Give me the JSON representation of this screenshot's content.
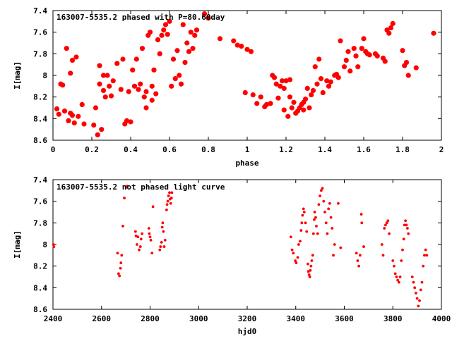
{
  "chart_data": [
    {
      "type": "scatter",
      "title": "163007-5535.2 phased with P=80.60day",
      "xlabel": "phase",
      "ylabel": "I[mag]",
      "xlim": [
        0,
        2
      ],
      "ylim": [
        8.6,
        7.4
      ],
      "y_inverted": true,
      "grid": false,
      "marker": "filled-circle-large",
      "color": "#ff0000",
      "x_ticks": [
        "0",
        "0.2",
        "0.4",
        "0.6",
        "0.8",
        "1",
        "1.2",
        "1.4",
        "1.6",
        "1.8",
        "2"
      ],
      "y_ticks": [
        "7.4",
        "7.6",
        "7.8",
        "8",
        "8.2",
        "8.4",
        "8.6"
      ],
      "points": [
        [
          0.02,
          8.31
        ],
        [
          0.03,
          8.36
        ],
        [
          0.04,
          8.08
        ],
        [
          0.05,
          8.09
        ],
        [
          0.06,
          8.33
        ],
        [
          0.07,
          7.75
        ],
        [
          0.08,
          8.42
        ],
        [
          0.09,
          8.35
        ],
        [
          0.09,
          7.98
        ],
        [
          0.1,
          7.86
        ],
        [
          0.1,
          8.37
        ],
        [
          0.11,
          8.44
        ],
        [
          0.12,
          7.83
        ],
        [
          0.13,
          8.38
        ],
        [
          0.15,
          8.27
        ],
        [
          0.16,
          8.45
        ],
        [
          0.21,
          8.46
        ],
        [
          0.22,
          8.3
        ],
        [
          0.23,
          8.55
        ],
        [
          0.24,
          8.08
        ],
        [
          0.24,
          7.91
        ],
        [
          0.25,
          8.5
        ],
        [
          0.26,
          8.0
        ],
        [
          0.26,
          8.14
        ],
        [
          0.27,
          8.2
        ],
        [
          0.28,
          8.0
        ],
        [
          0.29,
          8.1
        ],
        [
          0.3,
          8.19
        ],
        [
          0.31,
          8.05
        ],
        [
          0.33,
          7.89
        ],
        [
          0.35,
          8.13
        ],
        [
          0.36,
          7.85
        ],
        [
          0.37,
          8.45
        ],
        [
          0.38,
          8.42
        ],
        [
          0.39,
          8.15
        ],
        [
          0.4,
          8.43
        ],
        [
          0.41,
          7.95
        ],
        [
          0.42,
          8.1
        ],
        [
          0.43,
          7.85
        ],
        [
          0.44,
          8.13
        ],
        [
          0.45,
          8.08
        ],
        [
          0.46,
          7.75
        ],
        [
          0.47,
          8.2
        ],
        [
          0.48,
          8.15
        ],
        [
          0.48,
          8.3
        ],
        [
          0.49,
          7.63
        ],
        [
          0.5,
          7.6
        ],
        [
          0.51,
          8.23
        ],
        [
          0.51,
          8.1
        ],
        [
          0.52,
          7.95
        ],
        [
          0.53,
          8.17
        ],
        [
          0.54,
          7.67
        ],
        [
          0.55,
          7.8
        ],
        [
          0.56,
          7.63
        ],
        [
          0.57,
          7.58
        ],
        [
          0.58,
          7.53
        ],
        [
          0.59,
          7.62
        ],
        [
          0.6,
          7.5
        ],
        [
          0.61,
          8.1
        ],
        [
          0.62,
          7.85
        ],
        [
          0.63,
          8.03
        ],
        [
          0.64,
          7.77
        ],
        [
          0.65,
          8.0
        ],
        [
          0.66,
          8.08
        ],
        [
          0.67,
          7.53
        ],
        [
          0.68,
          7.88
        ],
        [
          0.69,
          7.7
        ],
        [
          0.7,
          7.78
        ],
        [
          0.71,
          7.6
        ],
        [
          0.72,
          7.75
        ],
        [
          0.73,
          7.63
        ],
        [
          0.74,
          7.58
        ],
        [
          0.78,
          7.43
        ],
        [
          0.8,
          7.47
        ],
        [
          0.86,
          7.66
        ],
        [
          0.93,
          7.68
        ],
        [
          0.95,
          7.72
        ],
        [
          0.97,
          7.73
        ],
        [
          0.99,
          8.16
        ],
        [
          1.0,
          7.76
        ],
        [
          1.02,
          7.78
        ],
        [
          1.03,
          8.18
        ],
        [
          1.05,
          8.26
        ],
        [
          1.07,
          8.2
        ],
        [
          1.09,
          8.29
        ],
        [
          1.1,
          8.27
        ],
        [
          1.12,
          8.26
        ],
        [
          1.13,
          8.0
        ],
        [
          1.14,
          8.02
        ],
        [
          1.15,
          8.08
        ],
        [
          1.16,
          8.21
        ],
        [
          1.17,
          8.1
        ],
        [
          1.18,
          8.05
        ],
        [
          1.19,
          8.32
        ],
        [
          1.19,
          8.12
        ],
        [
          1.2,
          8.05
        ],
        [
          1.21,
          8.38
        ],
        [
          1.22,
          8.04
        ],
        [
          1.22,
          8.2
        ],
        [
          1.23,
          8.3
        ],
        [
          1.24,
          8.25
        ],
        [
          1.25,
          8.35
        ],
        [
          1.26,
          8.33
        ],
        [
          1.27,
          8.3
        ],
        [
          1.28,
          8.27
        ],
        [
          1.29,
          8.25
        ],
        [
          1.29,
          8.32
        ],
        [
          1.3,
          8.22
        ],
        [
          1.31,
          8.12
        ],
        [
          1.32,
          8.3
        ],
        [
          1.33,
          8.18
        ],
        [
          1.34,
          8.14
        ],
        [
          1.35,
          7.92
        ],
        [
          1.36,
          8.08
        ],
        [
          1.37,
          7.85
        ],
        [
          1.38,
          8.03
        ],
        [
          1.39,
          8.16
        ],
        [
          1.41,
          8.05
        ],
        [
          1.42,
          8.1
        ],
        [
          1.43,
          8.06
        ],
        [
          1.45,
          8.0
        ],
        [
          1.46,
          7.99
        ],
        [
          1.47,
          8.02
        ],
        [
          1.48,
          7.68
        ],
        [
          1.5,
          7.92
        ],
        [
          1.51,
          7.86
        ],
        [
          1.52,
          7.78
        ],
        [
          1.53,
          7.96
        ],
        [
          1.55,
          7.75
        ],
        [
          1.56,
          7.82
        ],
        [
          1.57,
          7.92
        ],
        [
          1.59,
          7.75
        ],
        [
          1.6,
          7.66
        ],
        [
          1.61,
          7.78
        ],
        [
          1.62,
          7.8
        ],
        [
          1.63,
          7.81
        ],
        [
          1.66,
          7.8
        ],
        [
          1.67,
          7.82
        ],
        [
          1.7,
          7.84
        ],
        [
          1.71,
          7.87
        ],
        [
          1.72,
          7.58
        ],
        [
          1.73,
          7.61
        ],
        [
          1.74,
          7.56
        ],
        [
          1.75,
          7.52
        ],
        [
          1.8,
          7.77
        ],
        [
          1.81,
          7.91
        ],
        [
          1.82,
          7.88
        ],
        [
          1.83,
          8.0
        ],
        [
          1.87,
          7.93
        ],
        [
          1.96,
          7.61
        ]
      ]
    },
    {
      "type": "scatter",
      "title": "163007-5535.2 not phased light curve",
      "xlabel": "hjd0",
      "ylabel": "I[mag]",
      "xlim": [
        2400,
        4000
      ],
      "ylim": [
        8.6,
        7.4
      ],
      "y_inverted": true,
      "grid": false,
      "marker": "filled-circle-small",
      "color": "#ff0000",
      "x_ticks": [
        "2400",
        "2600",
        "2800",
        "3000",
        "3200",
        "3400",
        "3600",
        "3800",
        "4000"
      ],
      "y_ticks": [
        "7.4",
        "7.6",
        "7.8",
        "8",
        "8.2",
        "8.4",
        "8.6"
      ],
      "points": [
        [
          2402,
          8.0
        ],
        [
          2404,
          8.02
        ],
        [
          2666,
          8.08
        ],
        [
          2670,
          8.27
        ],
        [
          2674,
          8.29
        ],
        [
          2678,
          8.22
        ],
        [
          2680,
          8.17
        ],
        [
          2683,
          8.1
        ],
        [
          2688,
          7.83
        ],
        [
          2694,
          7.57
        ],
        [
          2703,
          7.47
        ],
        [
          2706,
          7.46
        ],
        [
          2740,
          7.88
        ],
        [
          2742,
          7.92
        ],
        [
          2746,
          8.0
        ],
        [
          2750,
          7.93
        ],
        [
          2755,
          8.05
        ],
        [
          2760,
          8.02
        ],
        [
          2763,
          7.95
        ],
        [
          2767,
          7.9
        ],
        [
          2795,
          7.85
        ],
        [
          2797,
          7.9
        ],
        [
          2800,
          7.93
        ],
        [
          2803,
          7.96
        ],
        [
          2808,
          8.08
        ],
        [
          2812,
          7.65
        ],
        [
          2840,
          8.05
        ],
        [
          2843,
          8.02
        ],
        [
          2847,
          7.98
        ],
        [
          2850,
          7.84
        ],
        [
          2852,
          7.8
        ],
        [
          2855,
          7.88
        ],
        [
          2858,
          8.02
        ],
        [
          2862,
          7.96
        ],
        [
          2868,
          7.68
        ],
        [
          2870,
          7.63
        ],
        [
          2873,
          7.6
        ],
        [
          2876,
          7.55
        ],
        [
          2880,
          7.52
        ],
        [
          2882,
          7.58
        ],
        [
          2885,
          7.62
        ],
        [
          2888,
          7.57
        ],
        [
          2890,
          7.52
        ],
        [
          3380,
          7.93
        ],
        [
          3385,
          8.05
        ],
        [
          3390,
          8.08
        ],
        [
          3398,
          8.15
        ],
        [
          3402,
          8.17
        ],
        [
          3408,
          8.12
        ],
        [
          3412,
          8.0
        ],
        [
          3418,
          7.97
        ],
        [
          3422,
          7.87
        ],
        [
          3425,
          7.8
        ],
        [
          3428,
          7.73
        ],
        [
          3432,
          7.67
        ],
        [
          3435,
          7.7
        ],
        [
          3440,
          7.8
        ],
        [
          3445,
          7.88
        ],
        [
          3450,
          8.18
        ],
        [
          3452,
          8.25
        ],
        [
          3455,
          8.28
        ],
        [
          3458,
          8.3
        ],
        [
          3460,
          8.24
        ],
        [
          3463,
          8.2
        ],
        [
          3466,
          8.15
        ],
        [
          3470,
          8.1
        ],
        [
          3473,
          7.9
        ],
        [
          3476,
          7.77
        ],
        [
          3478,
          7.7
        ],
        [
          3482,
          7.75
        ],
        [
          3485,
          7.83
        ],
        [
          3490,
          7.9
        ],
        [
          3495,
          7.63
        ],
        [
          3500,
          7.55
        ],
        [
          3505,
          7.5
        ],
        [
          3510,
          7.48
        ],
        [
          3515,
          7.6
        ],
        [
          3520,
          7.7
        ],
        [
          3525,
          7.8
        ],
        [
          3530,
          7.9
        ],
        [
          3535,
          7.67
        ],
        [
          3540,
          7.62
        ],
        [
          3545,
          7.75
        ],
        [
          3550,
          7.85
        ],
        [
          3555,
          8.1
        ],
        [
          3560,
          8.0
        ],
        [
          3575,
          7.62
        ],
        [
          3585,
          8.03
        ],
        [
          3650,
          8.08
        ],
        [
          3655,
          8.15
        ],
        [
          3660,
          8.2
        ],
        [
          3665,
          8.1
        ],
        [
          3670,
          7.72
        ],
        [
          3672,
          7.8
        ],
        [
          3680,
          8.02
        ],
        [
          3755,
          8.0
        ],
        [
          3760,
          8.1
        ],
        [
          3765,
          7.85
        ],
        [
          3770,
          7.82
        ],
        [
          3775,
          7.8
        ],
        [
          3780,
          7.78
        ],
        [
          3785,
          7.9
        ],
        [
          3800,
          8.15
        ],
        [
          3805,
          8.2
        ],
        [
          3810,
          8.27
        ],
        [
          3815,
          8.3
        ],
        [
          3820,
          8.33
        ],
        [
          3825,
          8.35
        ],
        [
          3830,
          8.3
        ],
        [
          3835,
          8.15
        ],
        [
          3840,
          8.05
        ],
        [
          3845,
          7.95
        ],
        [
          3848,
          7.82
        ],
        [
          3852,
          7.78
        ],
        [
          3856,
          7.82
        ],
        [
          3860,
          7.85
        ],
        [
          3864,
          7.9
        ],
        [
          3880,
          8.3
        ],
        [
          3885,
          8.35
        ],
        [
          3890,
          8.4
        ],
        [
          3895,
          8.45
        ],
        [
          3900,
          8.5
        ],
        [
          3905,
          8.57
        ],
        [
          3910,
          8.52
        ],
        [
          3915,
          8.42
        ],
        [
          3920,
          8.35
        ],
        [
          3925,
          8.2
        ],
        [
          3930,
          8.1
        ],
        [
          3935,
          8.05
        ],
        [
          3940,
          8.1
        ]
      ]
    }
  ]
}
